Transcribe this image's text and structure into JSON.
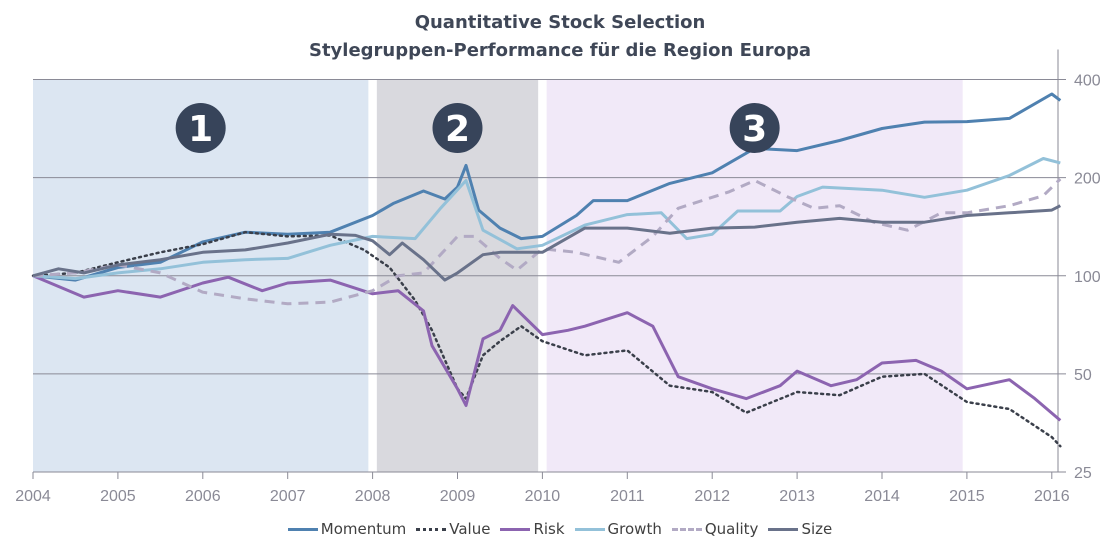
{
  "chart_data": {
    "type": "line",
    "title": "Quantitative Stock Selection",
    "subtitle": "Stylegruppen-Performance für die Region Europa",
    "y_scale": "log2",
    "ylim": [
      25,
      400
    ],
    "y_ticks": [
      25,
      50,
      100,
      200,
      400
    ],
    "xlim": [
      2004,
      2016.1
    ],
    "x_ticks": [
      2004,
      2005,
      2006,
      2007,
      2008,
      2009,
      2010,
      2011,
      2012,
      2013,
      2014,
      2015,
      2016
    ],
    "grid": "horizontal",
    "legend_position": "bottom",
    "phases": [
      {
        "label": "1",
        "start": 2004,
        "end": 2007.95,
        "color": "#dce6f2"
      },
      {
        "label": "2",
        "start": 2008.05,
        "end": 2009.95,
        "color": "#d9d9de"
      },
      {
        "label": "3",
        "start": 2010.05,
        "end": 2014.95,
        "color": "#f1e9f8"
      }
    ],
    "series": [
      {
        "name": "Momentum",
        "color": "#4f81b0",
        "style": "solid",
        "x": [
          2004,
          2004.5,
          2005,
          2005.5,
          2006,
          2006.5,
          2007,
          2007.5,
          2008,
          2008.25,
          2008.6,
          2008.85,
          2009,
          2009.1,
          2009.25,
          2009.5,
          2009.75,
          2010,
          2010.4,
          2010.6,
          2011,
          2011.5,
          2012,
          2012.5,
          2013,
          2013.5,
          2014,
          2014.5,
          2015,
          2015.5,
          2016,
          2016.1
        ],
        "y": [
          100,
          97,
          106,
          110,
          127,
          136,
          134,
          136,
          153,
          167,
          182,
          172,
          187,
          218,
          159,
          140,
          130,
          132,
          153,
          170,
          170,
          192,
          207,
          246,
          242,
          260,
          283,
          296,
          297,
          304,
          361,
          345
        ]
      },
      {
        "name": "Value",
        "color": "#3a3f4a",
        "style": "dotted",
        "x": [
          2004,
          2004.5,
          2005,
          2005.5,
          2006,
          2006.5,
          2007,
          2007.5,
          2007.9,
          2008.2,
          2008.5,
          2008.7,
          2009,
          2009.1,
          2009.3,
          2009.5,
          2009.75,
          2010,
          2010.5,
          2011,
          2011.5,
          2012,
          2012.4,
          2013,
          2013.5,
          2014,
          2014.5,
          2015,
          2015.5,
          2016,
          2016.1
        ],
        "y": [
          100,
          102,
          110,
          118,
          125,
          136,
          132,
          133,
          120,
          106,
          84,
          68,
          45,
          42,
          57,
          63,
          70,
          63,
          57,
          59,
          46,
          44,
          38,
          44,
          43,
          49,
          50,
          41,
          39,
          32,
          30
        ]
      },
      {
        "name": "Risk",
        "color": "#8c64b0",
        "style": "solid",
        "x": [
          2004,
          2004.6,
          2005,
          2005.5,
          2006,
          2006.3,
          2006.7,
          2007,
          2007.5,
          2008,
          2008.3,
          2008.6,
          2008.7,
          2009,
          2009.1,
          2009.3,
          2009.5,
          2009.65,
          2010,
          2010.3,
          2010.5,
          2011,
          2011.3,
          2011.6,
          2012,
          2012.4,
          2012.8,
          2013,
          2013.4,
          2013.7,
          2014,
          2014.4,
          2014.7,
          2015,
          2015.5,
          2015.8,
          2016.1
        ],
        "y": [
          100,
          86,
          90,
          86,
          95,
          99,
          90,
          95,
          97,
          88,
          90,
          78,
          61,
          45,
          40,
          64,
          68,
          81,
          66,
          68,
          70,
          77,
          70,
          49,
          45,
          42,
          46,
          51,
          46,
          48,
          54,
          55,
          51,
          45,
          48,
          42,
          36
        ]
      },
      {
        "name": "Growth",
        "color": "#93c1d9",
        "style": "solid",
        "x": [
          2004,
          2004.5,
          2005,
          2005.5,
          2006,
          2006.5,
          2007,
          2007.5,
          2008,
          2008.5,
          2008.8,
          2009.1,
          2009.3,
          2009.7,
          2010,
          2010.5,
          2011,
          2011.4,
          2011.7,
          2012,
          2012.3,
          2012.8,
          2013,
          2013.3,
          2014,
          2014.5,
          2015,
          2015.5,
          2015.9,
          2016.1
        ],
        "y": [
          100,
          98,
          102,
          105,
          110,
          112,
          113,
          124,
          132,
          130,
          161,
          196,
          138,
          121,
          124,
          143,
          154,
          156,
          130,
          134,
          158,
          158,
          175,
          187,
          183,
          174,
          183,
          203,
          229,
          222
        ]
      },
      {
        "name": "Quality",
        "color": "#b2aac4",
        "style": "dashed",
        "x": [
          2004,
          2004.5,
          2005,
          2005.5,
          2006,
          2006.5,
          2007,
          2007.5,
          2008,
          2008.3,
          2008.6,
          2008.8,
          2009,
          2009.2,
          2009.5,
          2009.7,
          2010,
          2010.4,
          2010.9,
          2011.3,
          2011.6,
          2012.2,
          2012.5,
          2012.9,
          2013.2,
          2013.5,
          2013.9,
          2014.3,
          2014.7,
          2015,
          2015.5,
          2015.9,
          2016.1
        ],
        "y": [
          100,
          102,
          108,
          102,
          89,
          85,
          82,
          83,
          90,
          100,
          102,
          116,
          132,
          132,
          113,
          104,
          121,
          118,
          110,
          132,
          161,
          181,
          196,
          174,
          161,
          164,
          146,
          138,
          156,
          156,
          164,
          176,
          198
        ]
      },
      {
        "name": "Size",
        "color": "#69728a",
        "style": "solid",
        "x": [
          2004,
          2004.3,
          2004.6,
          2005,
          2005.5,
          2006,
          2006.5,
          2007,
          2007.5,
          2007.8,
          2008,
          2008.2,
          2008.35,
          2008.6,
          2008.85,
          2009,
          2009.3,
          2009.5,
          2010,
          2010.5,
          2011,
          2011.5,
          2012,
          2012.5,
          2013,
          2013.5,
          2014,
          2014.5,
          2015,
          2015.5,
          2016,
          2016.1
        ],
        "y": [
          100,
          105,
          102,
          108,
          112,
          118,
          120,
          126,
          134,
          133,
          128,
          116,
          126,
          112,
          97,
          102,
          116,
          118,
          118,
          140,
          140,
          135,
          140,
          141,
          146,
          150,
          146,
          146,
          153,
          156,
          159,
          164
        ]
      }
    ]
  }
}
